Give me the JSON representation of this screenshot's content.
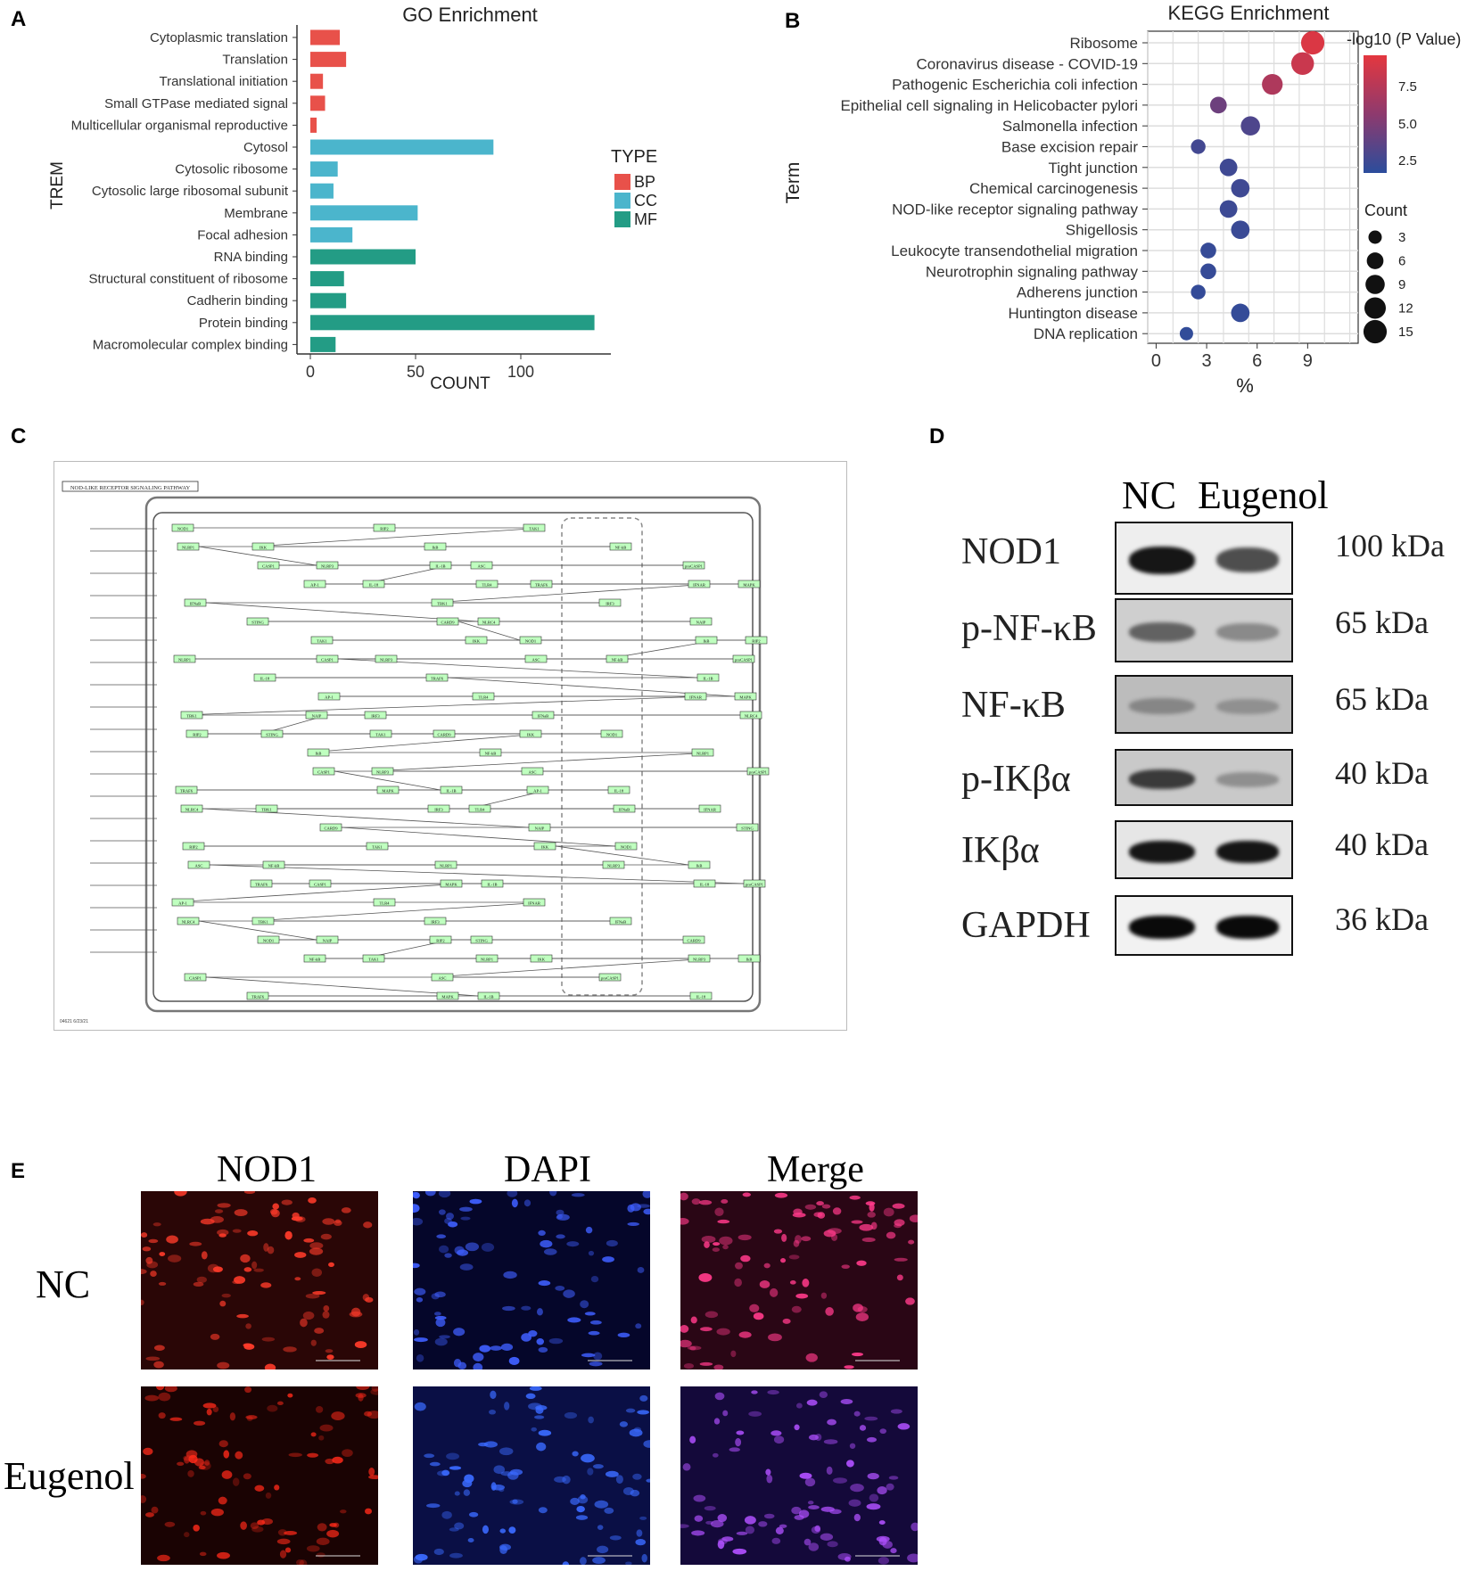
{
  "panels": {
    "a": "A",
    "b": "B",
    "c": "C",
    "d": "D",
    "e": "E"
  },
  "chart_data": [
    {
      "type": "bar",
      "title": "GO Enrichment",
      "xlabel": "COUNT",
      "ylabel": "TREM",
      "xlim": [
        0,
        140
      ],
      "xticks": [
        "0",
        "50",
        "100"
      ],
      "categories": [
        "Cytoplasmic translation",
        "Translation",
        "Translational initiation",
        "Small GTPase mediated signal",
        "Multicellular organismal reproductive",
        "Cytosol",
        "Cytosolic ribosome",
        "Cytosolic large ribosomal subunit",
        "Membrane",
        "Focal adhesion",
        "RNA binding",
        "Structural constituent of ribosome",
        "Cadherin binding",
        "Protein binding",
        "Macromolecular complex binding"
      ],
      "values": [
        14,
        17,
        6,
        7,
        3,
        87,
        13,
        11,
        51,
        20,
        50,
        16,
        17,
        135,
        12
      ],
      "types": [
        "BP",
        "BP",
        "BP",
        "BP",
        "BP",
        "CC",
        "CC",
        "CC",
        "CC",
        "CC",
        "MF",
        "MF",
        "MF",
        "MF",
        "MF"
      ],
      "legend": {
        "title": "TYPE",
        "items": [
          {
            "name": "BP",
            "color": "#E8514A"
          },
          {
            "name": "CC",
            "color": "#4BB5CC"
          },
          {
            "name": "MF",
            "color": "#239C85"
          }
        ],
        "placement": "right"
      },
      "grid": false
    },
    {
      "type": "scatter",
      "title": "KEGG Enrichment",
      "xlabel": "%",
      "ylabel": "Term",
      "xlim": [
        -0.5,
        12
      ],
      "xticks": [
        "0",
        "3",
        "6",
        "9"
      ],
      "categories": [
        "Ribosome",
        "Coronavirus disease - COVID-19",
        "Pathogenic Escherichia coli infection",
        "Epithelial cell signaling in Helicobacter pylori",
        "Salmonella infection",
        "Base excision repair",
        "Tight junction",
        "Chemical carcinogenesis",
        "NOD-like receptor signaling pathway",
        "Shigellosis",
        "Leukocyte transendothelial migration",
        "Neurotrophin signaling pathway",
        "Adherens junction",
        "Huntington disease",
        "DNA replication"
      ],
      "x": [
        9.3,
        8.7,
        6.9,
        3.7,
        5.6,
        2.5,
        4.3,
        5.0,
        4.3,
        5.0,
        3.1,
        3.1,
        2.5,
        5.0,
        1.8
      ],
      "count": [
        15,
        14,
        11,
        6,
        9,
        4,
        7,
        8,
        7,
        8,
        5,
        5,
        4,
        8,
        3
      ],
      "neglog10p": [
        9.5,
        8.6,
        7.2,
        4.0,
        2.6,
        2.1,
        1.9,
        1.9,
        1.8,
        1.7,
        1.5,
        1.5,
        1.4,
        1.4,
        1.3
      ],
      "color_legend": {
        "title": "-log10 (P Value)",
        "ticks": [
          "7.5",
          "5.0",
          "2.5"
        ],
        "low": "#2B4D9C",
        "high": "#E4373F"
      },
      "size_legend": {
        "title": "Count",
        "ticks": [
          "3",
          "6",
          "9",
          "12",
          "15"
        ]
      },
      "grid": true
    }
  ],
  "western": {
    "columns": [
      "NC",
      "Eugenol"
    ],
    "rows": [
      {
        "label": "NOD1",
        "kda": "100 kDa"
      },
      {
        "label": "p-NF-κB",
        "kda": "65 kDa"
      },
      {
        "label": "NF-κB",
        "kda": "65 kDa"
      },
      {
        "label": "p-IKβα",
        "kda": "40 kDa"
      },
      {
        "label": "IKβα",
        "kda": "40 kDa"
      },
      {
        "label": "GAPDH",
        "kda": "36 kDa"
      }
    ]
  },
  "pathway": {
    "title": "NOD-LIKE RECEPTOR SIGNALING PATHWAY",
    "nodes": [
      "NOD1",
      "RIP2",
      "TAK1",
      "IKK",
      "IkB",
      "NF-kB",
      "NLRP1",
      "NLRP3",
      "ASC",
      "proCASP1",
      "CASP1",
      "IL-1B",
      "IL-18",
      "TRAF6",
      "MAPK",
      "AP-1",
      "TLR4",
      "IFNAR",
      "TBK1",
      "IRF3",
      "IFNaB",
      "NLRC4",
      "NAIP",
      "STING",
      "CARD9"
    ]
  },
  "if": {
    "columns": [
      "NOD1",
      "DAPI",
      "Merge"
    ],
    "rows": [
      "NC",
      "Eugenol"
    ]
  }
}
